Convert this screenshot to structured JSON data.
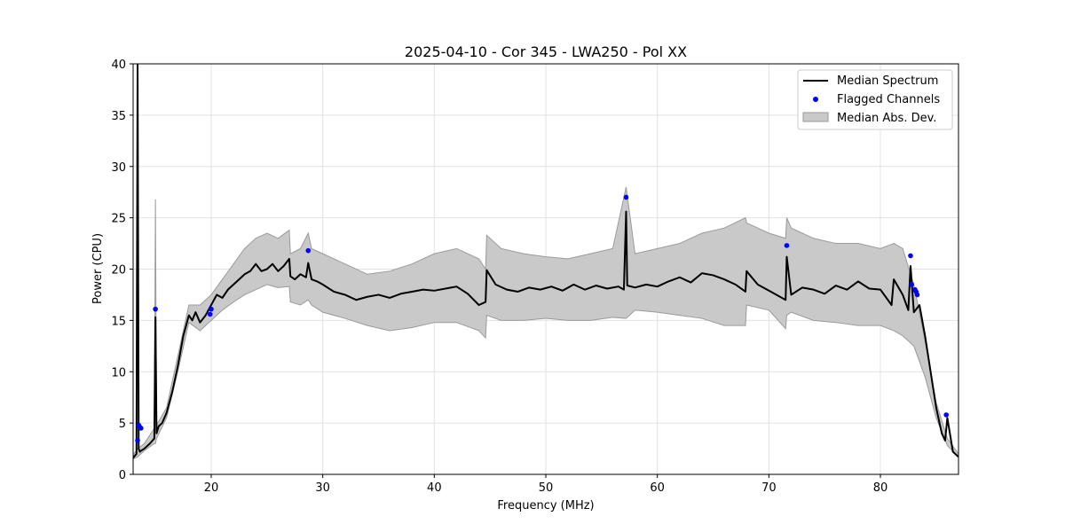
{
  "chart_data": {
    "type": "line",
    "title": "2025-04-10 - Cor 345 - LWA250 - Pol XX",
    "xlabel": "Frequency (MHz)",
    "ylabel": "Power (CPU)",
    "xlim": [
      13.0,
      87.0
    ],
    "ylim": [
      0,
      40
    ],
    "xticks": [
      20,
      30,
      40,
      50,
      60,
      70,
      80
    ],
    "yticks": [
      0,
      5,
      10,
      15,
      20,
      25,
      30,
      35,
      40
    ],
    "grid": true,
    "legend_position": "top-right",
    "colors": {
      "median": "#000000",
      "flagged": "#0000ff",
      "mad_fill": "#c9c9c9",
      "mad_edge": "#9a9a9a"
    },
    "series": [
      {
        "name": "Median Spectrum",
        "kind": "line",
        "x": [
          13.0,
          13.3,
          13.4,
          13.5,
          13.6,
          13.7,
          14.0,
          14.5,
          14.9,
          15.0,
          15.1,
          15.3,
          15.6,
          16.0,
          16.5,
          17.0,
          17.5,
          18.0,
          18.3,
          18.6,
          19.0,
          19.5,
          20.0,
          20.5,
          21.0,
          21.5,
          22.0,
          22.5,
          23.0,
          23.5,
          24.0,
          24.5,
          25.0,
          25.5,
          26.0,
          26.5,
          27.0,
          27.1,
          27.5,
          28.0,
          28.5,
          28.7,
          29.0,
          29.5,
          30.0,
          31.0,
          32.0,
          33.0,
          34.0,
          35.0,
          36.0,
          37.0,
          38.0,
          39.0,
          40.0,
          41.0,
          42.0,
          43.0,
          44.0,
          44.6,
          44.7,
          45.5,
          46.5,
          47.5,
          48.5,
          49.5,
          50.5,
          51.5,
          52.5,
          53.5,
          54.5,
          55.5,
          56.5,
          57.0,
          57.2,
          57.3,
          58.0,
          59.0,
          60.0,
          61.0,
          62.0,
          63.0,
          64.0,
          65.0,
          66.0,
          67.0,
          67.9,
          68.0,
          69.0,
          70.0,
          71.0,
          71.5,
          71.6,
          72.0,
          73.0,
          74.0,
          75.0,
          76.0,
          77.0,
          78.0,
          79.0,
          80.0,
          81.0,
          81.2,
          82.0,
          82.5,
          82.7,
          83.0,
          83.5,
          84.0,
          84.5,
          85.0,
          85.5,
          85.8,
          86.0,
          86.5,
          87.0
        ],
        "y": [
          1.6,
          2.0,
          40.0,
          2.5,
          2.2,
          2.3,
          2.5,
          3.0,
          3.5,
          15.3,
          4.0,
          4.7,
          5.0,
          6.0,
          8.0,
          10.5,
          13.5,
          15.5,
          15.0,
          15.8,
          14.8,
          15.5,
          16.5,
          17.5,
          17.2,
          18.0,
          18.5,
          19.0,
          19.5,
          19.8,
          20.5,
          19.8,
          20.0,
          20.5,
          19.8,
          20.3,
          21.0,
          19.3,
          19.0,
          19.5,
          19.2,
          20.6,
          19.0,
          18.8,
          18.5,
          17.8,
          17.5,
          17.0,
          17.3,
          17.5,
          17.2,
          17.6,
          17.8,
          18.0,
          17.9,
          18.1,
          18.3,
          17.6,
          16.5,
          16.8,
          19.9,
          18.5,
          18.0,
          17.8,
          18.2,
          18.0,
          18.3,
          17.9,
          18.5,
          18.0,
          18.4,
          18.1,
          18.3,
          18.0,
          25.6,
          18.4,
          18.2,
          18.5,
          18.3,
          18.8,
          19.2,
          18.7,
          19.6,
          19.4,
          19.0,
          18.5,
          17.8,
          19.8,
          18.5,
          17.9,
          17.3,
          17.0,
          21.2,
          17.5,
          18.2,
          18.0,
          17.6,
          18.4,
          18.0,
          18.8,
          18.1,
          18.0,
          16.5,
          19.0,
          17.5,
          16.0,
          20.3,
          15.8,
          16.5,
          13.5,
          10.0,
          6.5,
          4.0,
          3.3,
          5.5,
          2.2,
          1.7
        ]
      },
      {
        "name": "Flagged Channels",
        "kind": "scatter",
        "x": [
          13.4,
          13.5,
          13.6,
          13.7,
          15.0,
          19.9,
          20.0,
          28.7,
          57.2,
          71.6,
          82.7,
          82.8,
          83.1,
          83.2,
          83.3,
          85.9
        ],
        "y": [
          3.3,
          4.8,
          4.6,
          4.5,
          16.1,
          15.6,
          16.1,
          21.8,
          27.0,
          22.3,
          21.3,
          18.5,
          18.0,
          17.8,
          17.5,
          5.8
        ]
      },
      {
        "name": "Median Abs. Dev.",
        "kind": "band",
        "x": [
          13.0,
          13.4,
          14.0,
          14.9,
          15.0,
          15.1,
          16.0,
          17.0,
          18.0,
          19.0,
          20.0,
          21.0,
          22.0,
          23.0,
          24.0,
          25.0,
          26.0,
          27.0,
          27.1,
          28.0,
          28.7,
          29.0,
          30.0,
          32.0,
          34.0,
          36.0,
          38.0,
          40.0,
          42.0,
          44.0,
          44.6,
          44.7,
          46.0,
          48.0,
          50.0,
          52.0,
          54.0,
          56.0,
          57.2,
          58.0,
          60.0,
          62.0,
          64.0,
          66.0,
          67.9,
          68.0,
          70.0,
          71.5,
          71.6,
          72.0,
          74.0,
          76.0,
          78.0,
          80.0,
          81.2,
          82.0,
          83.0,
          84.0,
          85.0,
          86.0,
          87.0
        ],
        "lower": [
          1.5,
          1.7,
          2.3,
          3.0,
          3.0,
          3.5,
          5.5,
          10.0,
          14.8,
          14.0,
          15.0,
          16.0,
          16.8,
          17.5,
          18.0,
          18.5,
          18.2,
          18.3,
          16.8,
          16.5,
          17.0,
          16.5,
          15.8,
          15.2,
          14.5,
          14.0,
          14.3,
          14.8,
          14.8,
          14.0,
          13.3,
          15.5,
          15.0,
          15.0,
          15.2,
          15.0,
          15.0,
          15.3,
          15.2,
          16.0,
          15.8,
          15.5,
          15.2,
          14.5,
          14.5,
          16.5,
          16.0,
          14.2,
          15.5,
          15.8,
          15.0,
          14.8,
          14.5,
          14.5,
          14.0,
          13.5,
          12.5,
          9.5,
          5.5,
          2.8,
          1.7
        ],
        "upper": [
          1.9,
          2.5,
          3.0,
          4.5,
          26.8,
          4.8,
          6.5,
          11.5,
          16.5,
          16.5,
          17.5,
          19.0,
          20.5,
          22.0,
          23.0,
          23.5,
          23.0,
          23.8,
          21.5,
          22.0,
          23.5,
          22.0,
          21.5,
          20.5,
          19.5,
          19.8,
          20.5,
          21.5,
          22.0,
          21.0,
          20.0,
          23.3,
          22.0,
          21.5,
          21.2,
          21.0,
          21.5,
          22.0,
          28.0,
          21.5,
          22.0,
          22.5,
          23.5,
          24.0,
          25.0,
          24.5,
          23.5,
          23.0,
          25.0,
          24.0,
          23.0,
          22.5,
          22.5,
          22.0,
          22.5,
          22.0,
          18.5,
          13.0,
          7.0,
          3.5,
          2.0
        ]
      }
    ]
  }
}
